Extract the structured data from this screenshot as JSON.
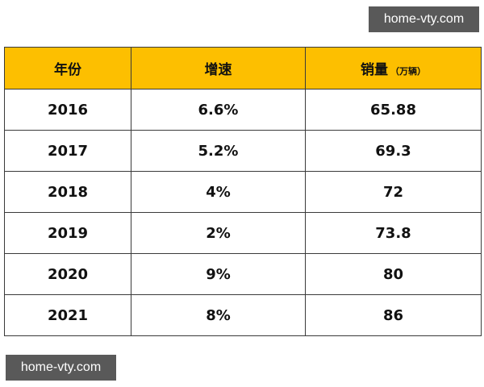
{
  "watermarks": {
    "top_right": "home-vty.com",
    "bottom_left": "home-vty.com"
  },
  "colors": {
    "header_bg": "#fdbf00",
    "border": "#3a3a3a",
    "watermark_bg": "#595959"
  },
  "table": {
    "headers": {
      "year": "年份",
      "growth": "增速",
      "sales": "销量",
      "sales_unit": "（万辆）"
    },
    "rows": [
      {
        "year": "2016",
        "growth": "6.6%",
        "sales": "65.88"
      },
      {
        "year": "2017",
        "growth": "5.2%",
        "sales": "69.3"
      },
      {
        "year": "2018",
        "growth": "4%",
        "sales": "72"
      },
      {
        "year": "2019",
        "growth": "2%",
        "sales": "73.8"
      },
      {
        "year": "2020",
        "growth": "9%",
        "sales": "80"
      },
      {
        "year": "2021",
        "growth": "8%",
        "sales": "86"
      }
    ]
  }
}
